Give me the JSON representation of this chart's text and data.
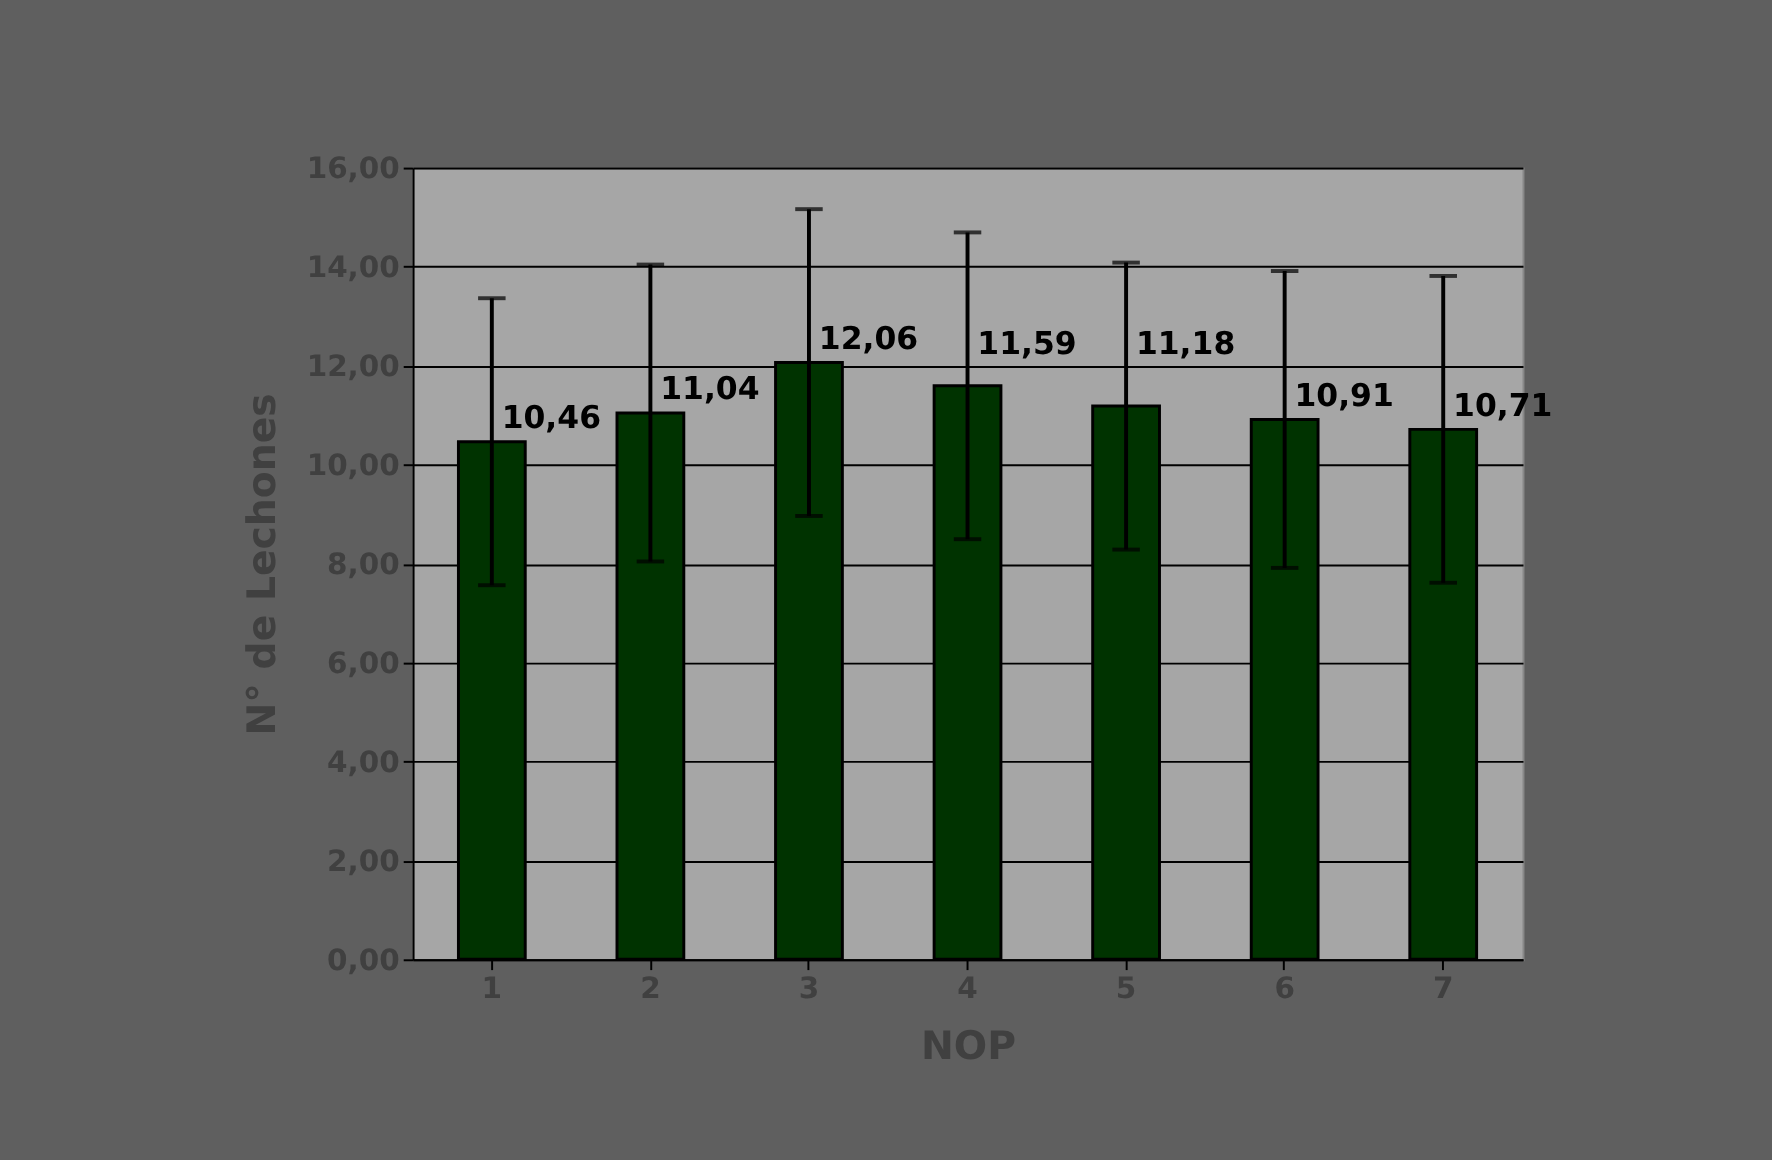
{
  "chart_data": {
    "type": "bar",
    "xlabel": "NOP",
    "ylabel": "N° de Lechones",
    "categories": [
      "1",
      "2",
      "3",
      "4",
      "5",
      "6",
      "7"
    ],
    "values": [
      10.46,
      11.04,
      12.06,
      11.59,
      11.18,
      10.91,
      10.71
    ],
    "errors": [
      2.9,
      3.0,
      3.1,
      3.1,
      2.9,
      3.0,
      3.1
    ],
    "color": "#003300",
    "ylim": [
      0,
      16
    ],
    "yticks": [
      {
        "value": 0,
        "label": "0,00"
      },
      {
        "value": 2,
        "label": "2,00"
      },
      {
        "value": 4,
        "label": "4,00"
      },
      {
        "value": 6,
        "label": "6,00"
      },
      {
        "value": 8,
        "label": "8,00"
      },
      {
        "value": 10,
        "label": "10,00"
      },
      {
        "value": 12,
        "label": "12,00"
      },
      {
        "value": 14,
        "label": "14,00"
      },
      {
        "value": 16,
        "label": "16,00"
      }
    ],
    "value_labels": [
      "10,46",
      "11,04",
      "12,06",
      "11,59",
      "11,18",
      "10,91",
      "10,71"
    ],
    "grid": "y"
  }
}
